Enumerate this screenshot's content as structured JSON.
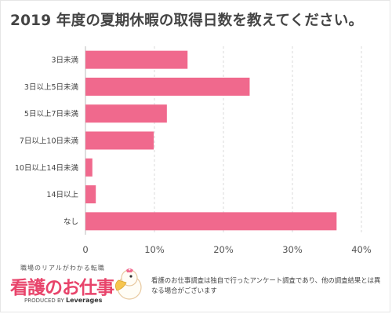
{
  "title": "2019 年度の夏期休暇の取得日数を教えてください。",
  "chart_data": {
    "type": "bar",
    "orientation": "horizontal",
    "title": "2019 年度の夏期休暇の取得日数を教えてください。",
    "categories": [
      "3日未満",
      "3日以上5日未満",
      "5日以上7日未満",
      "7日以上10日未満",
      "10日以上14日未満",
      "14日以上",
      "なし"
    ],
    "values": [
      14.8,
      23.8,
      11.8,
      9.9,
      1.0,
      1.5,
      36.4
    ],
    "xlim": [
      0,
      40
    ],
    "xticks": [
      "0",
      "10%",
      "20%",
      "30%",
      "40%"
    ],
    "grid": true,
    "bar_color": "#f0698d"
  },
  "footer": {
    "logo_tagline": "職場のリアルがわかる転職",
    "logo_name": "看護のお仕事",
    "logo_produced": "PRODUCED BY",
    "logo_company": "Leverages",
    "note": "看護のお仕事調査は独自で行ったアンケート調査であり、他の調査結果とは異なる場合がございます"
  }
}
